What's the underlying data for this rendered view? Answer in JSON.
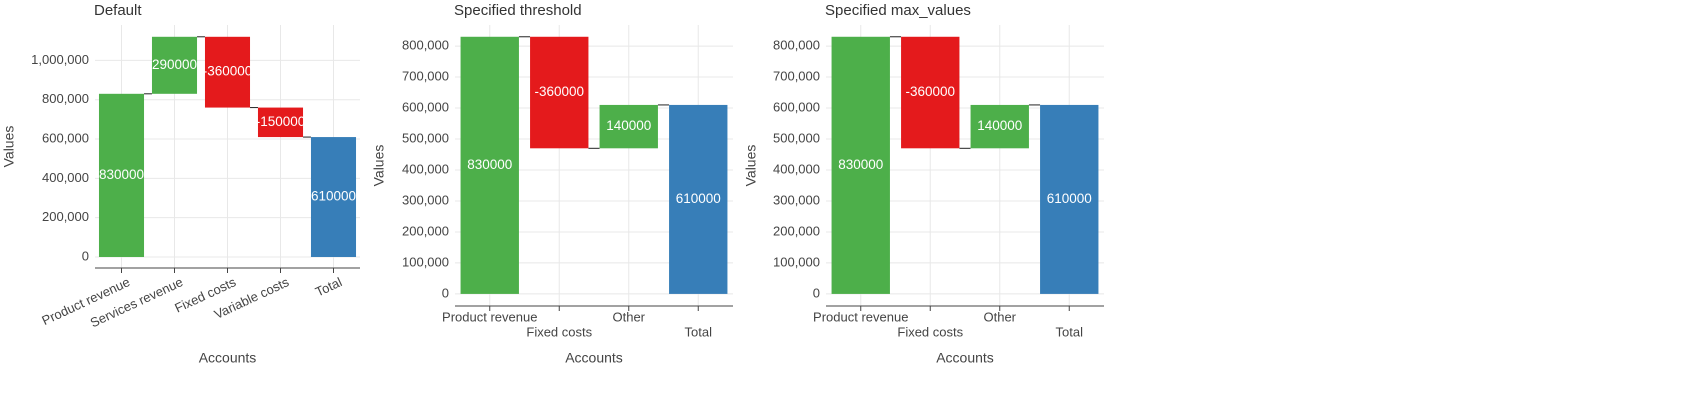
{
  "chart_data": [
    {
      "type": "waterfall",
      "title": "Default",
      "xlabel": "Accounts",
      "ylabel": "Values",
      "categories": [
        "Product revenue",
        "Services revenue",
        "Fixed costs",
        "Variable costs",
        "Total"
      ],
      "values": [
        830000,
        290000,
        -360000,
        -150000,
        610000
      ],
      "show_total": true,
      "colors": {
        "increase": "#4daf4a",
        "decrease": "#e41a1c",
        "total": "#377eb8"
      },
      "ylim": [
        -56000,
        1180000
      ],
      "yticks": [
        0,
        {
          "value": 200000,
          "label": "200,000"
        },
        {
          "value": 400000,
          "label": "400,000"
        },
        {
          "value": 600000,
          "label": "600,000"
        },
        {
          "value": 800000,
          "label": "800,000"
        },
        {
          "value": 1000000,
          "label": "1,000,000"
        }
      ],
      "grid": true
    },
    {
      "type": "waterfall",
      "title": "Specified threshold",
      "xlabel": "Accounts",
      "ylabel": "Values",
      "categories": [
        "Product revenue",
        "Fixed costs",
        "Other",
        "Total"
      ],
      "values": [
        830000,
        -360000,
        140000,
        610000
      ],
      "show_total": true,
      "colors": {
        "increase": "#4daf4a",
        "decrease": "#e41a1c",
        "total": "#377eb8"
      },
      "ylim": [
        -39000,
        868000
      ],
      "yticks": [
        0,
        {
          "value": 100000,
          "label": "100,000"
        },
        {
          "value": 200000,
          "label": "200,000"
        },
        {
          "value": 300000,
          "label": "300,000"
        },
        {
          "value": 400000,
          "label": "400,000"
        },
        {
          "value": 500000,
          "label": "500,000"
        },
        {
          "value": 600000,
          "label": "600,000"
        },
        {
          "value": 700000,
          "label": "700,000"
        },
        {
          "value": 800000,
          "label": "800,000"
        }
      ],
      "grid": true
    },
    {
      "type": "waterfall",
      "title": "Specified max_values",
      "xlabel": "Accounts",
      "ylabel": "Values",
      "categories": [
        "Product revenue",
        "Fixed costs",
        "Other",
        "Total"
      ],
      "values": [
        830000,
        -360000,
        140000,
        610000
      ],
      "show_total": true,
      "colors": {
        "increase": "#4daf4a",
        "decrease": "#e41a1c",
        "total": "#377eb8"
      },
      "ylim": [
        -39000,
        868000
      ],
      "yticks": [
        0,
        {
          "value": 100000,
          "label": "100,000"
        },
        {
          "value": 200000,
          "label": "200,000"
        },
        {
          "value": 300000,
          "label": "300,000"
        },
        {
          "value": 400000,
          "label": "400,000"
        },
        {
          "value": 500000,
          "label": "500,000"
        },
        {
          "value": 600000,
          "label": "600,000"
        },
        {
          "value": 700000,
          "label": "700,000"
        },
        {
          "value": 800000,
          "label": "800,000"
        }
      ],
      "grid": true
    }
  ]
}
